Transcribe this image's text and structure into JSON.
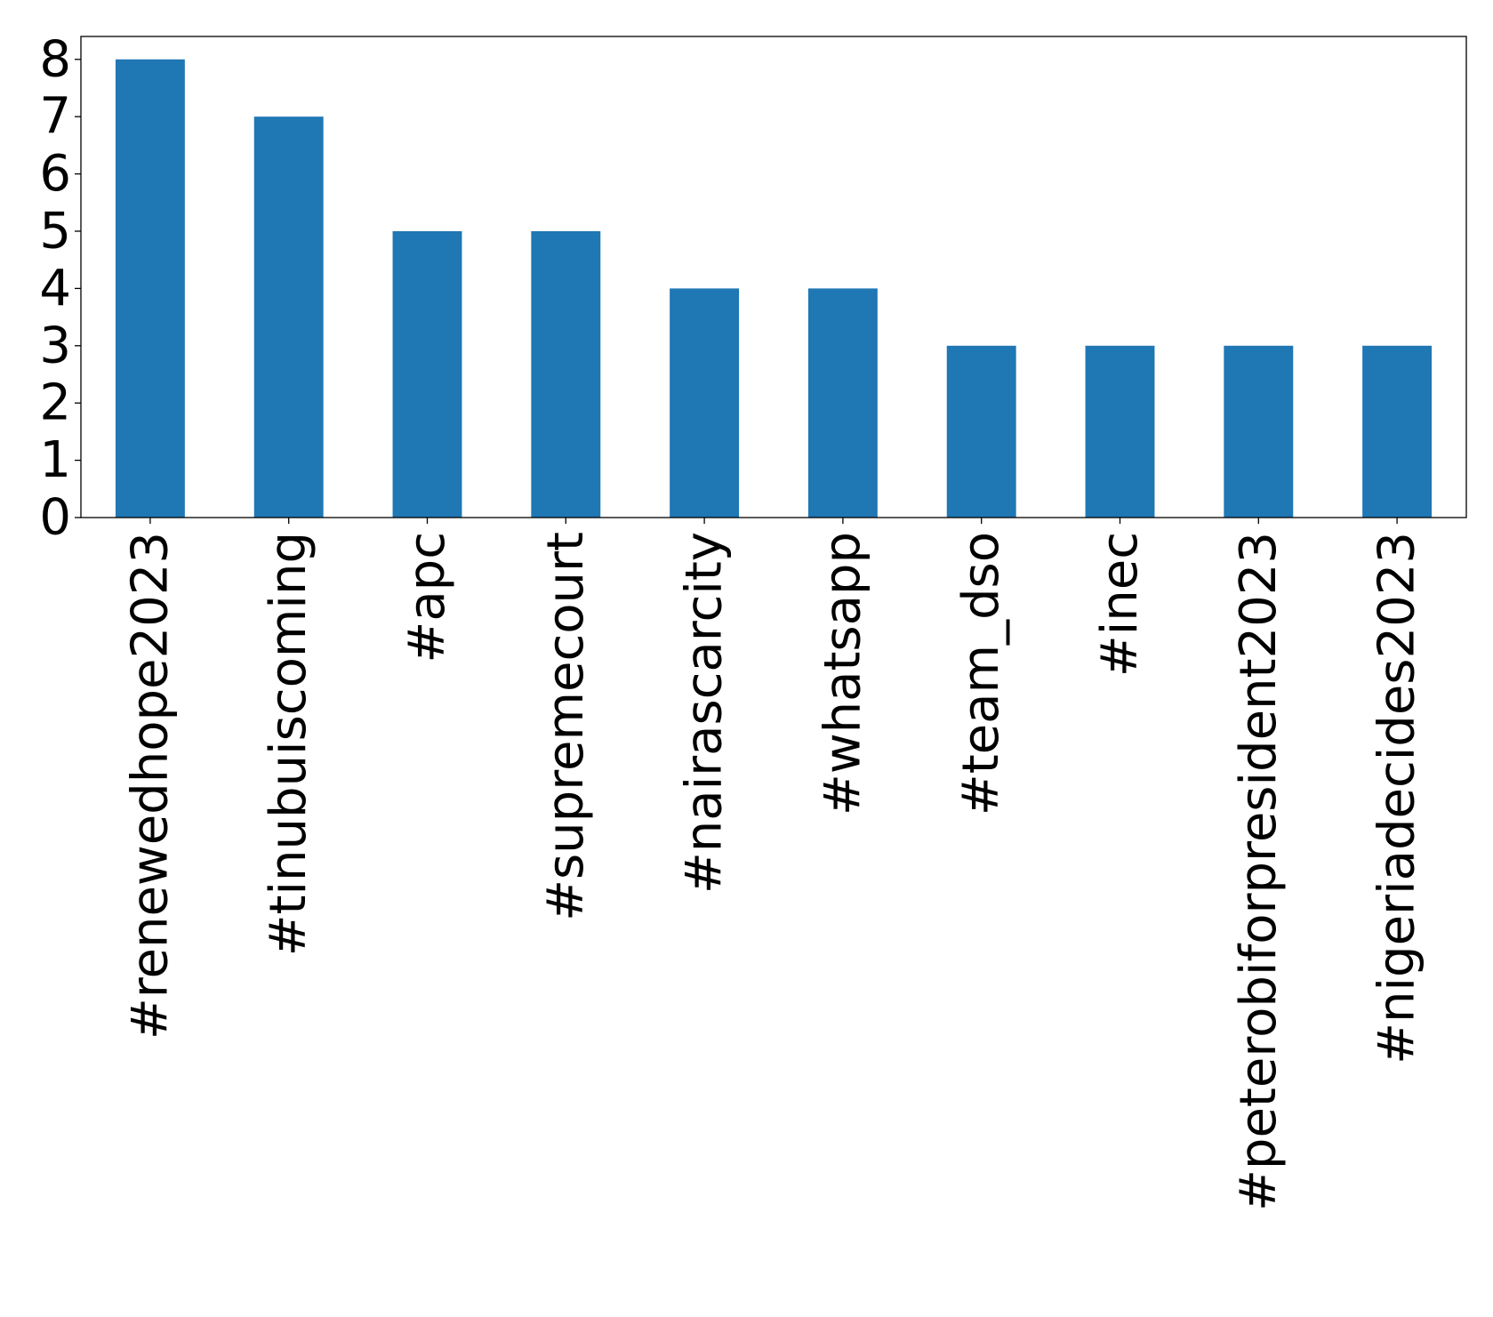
{
  "chart_data": {
    "type": "bar",
    "title": "",
    "xlabel": "",
    "ylabel": "",
    "categories": [
      "#renewedhope2023",
      "#tinubuiscoming",
      "#apc",
      "#supremecourt",
      "#nairascarcity",
      "#whatsapp",
      "#team_dso",
      "#inec",
      "#peterobiforpresident2023",
      "#nigeriadecides2023"
    ],
    "values": [
      8,
      7,
      5,
      5,
      4,
      4,
      3,
      3,
      3,
      3
    ],
    "ylim": [
      0,
      8.4
    ],
    "yticks": [
      0,
      1,
      2,
      3,
      4,
      5,
      6,
      7,
      8
    ],
    "bar_color": "#1f77b4",
    "grid": false,
    "legend": "none"
  }
}
